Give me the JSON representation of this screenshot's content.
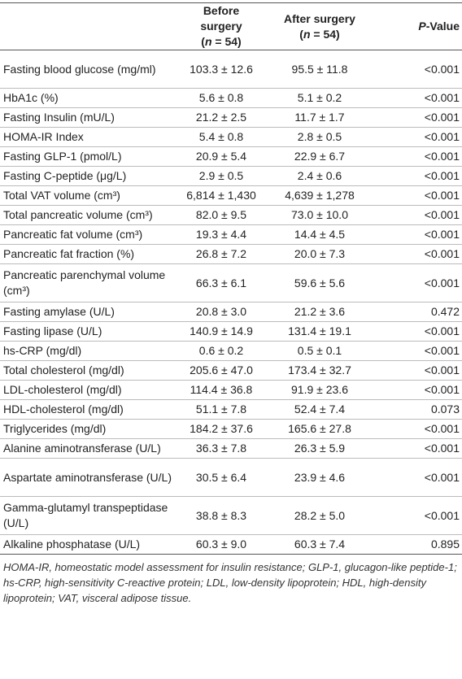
{
  "table": {
    "header": [
      {
        "label": "Before surgery",
        "sub": [
          "(",
          "n",
          " = 54)"
        ]
      },
      {
        "label": "After surgery",
        "sub": [
          "(",
          "n",
          " = 54)"
        ]
      },
      {
        "label": [
          "P",
          "-Value"
        ]
      }
    ],
    "rows": [
      [
        "Fasting blood glucose (mg/ml)",
        "103.3 ± 12.6",
        "95.5 ± 11.8",
        "<0.001"
      ],
      [
        "HbA1c (%)",
        "5.6 ± 0.8",
        "5.1 ± 0.2",
        "<0.001"
      ],
      [
        "Fasting Insulin (mU/L)",
        "21.2 ± 2.5",
        "11.7 ± 1.7",
        "<0.001"
      ],
      [
        "HOMA-IR Index",
        "5.4 ± 0.8",
        "2.8 ± 0.5",
        "<0.001"
      ],
      [
        "Fasting GLP-1 (pmol/L)",
        "20.9 ± 5.4",
        "22.9 ± 6.7",
        "<0.001"
      ],
      [
        "Fasting C-peptide (μg/L)",
        "2.9 ± 0.5",
        "2.4 ± 0.6",
        "<0.001"
      ],
      [
        "Total VAT volume (cm³)",
        "6,814 ± 1,430",
        "4,639 ± 1,278",
        "<0.001"
      ],
      [
        "Total pancreatic volume (cm³)",
        "82.0 ± 9.5",
        "73.0 ± 10.0",
        "<0.001"
      ],
      [
        "Pancreatic fat volume (cm³)",
        "19.3 ± 4.4",
        "14.4 ± 4.5",
        "<0.001"
      ],
      [
        "Pancreatic fat fraction (%)",
        "26.8 ± 7.2",
        "20.0 ± 7.3",
        "<0.001"
      ],
      [
        "Pancreatic parenchymal volume (cm³)",
        "66.3 ± 6.1",
        "59.6 ± 5.6",
        "<0.001"
      ],
      [
        "Fasting amylase (U/L)",
        "20.8 ± 3.0",
        "21.2 ± 3.6",
        "0.472"
      ],
      [
        "Fasting lipase (U/L)",
        "140.9 ± 14.9",
        "131.4 ± 19.1",
        "<0.001"
      ],
      [
        "hs-CRP (mg/dl)",
        "0.6 ± 0.2",
        "0.5 ± 0.1",
        "<0.001"
      ],
      [
        "Total cholesterol (mg/dl)",
        "205.6 ± 47.0",
        "173.4 ± 32.7",
        "<0.001"
      ],
      [
        "LDL-cholesterol (mg/dl)",
        "114.4 ± 36.8",
        "91.9 ± 23.6",
        "<0.001"
      ],
      [
        "HDL-cholesterol (mg/dl)",
        "51.1 ± 7.8",
        "52.4 ± 7.4",
        "0.073"
      ],
      [
        "Triglycerides (mg/dl)",
        "184.2 ± 37.6",
        "165.6 ± 27.8",
        "<0.001"
      ],
      [
        "Alanine aminotransferase (U/L)",
        "36.3 ± 7.8",
        "26.3 ± 5.9",
        "<0.001"
      ],
      [
        "Aspartate aminotransferase (U/L)",
        "30.5 ± 6.4",
        "23.9 ± 4.6",
        "<0.001"
      ],
      [
        "Gamma-glutamyl transpeptidase (U/L)",
        "38.8 ± 8.3",
        "28.2 ± 5.0",
        "<0.001"
      ],
      [
        "Alkaline phosphatase (U/L)",
        "60.3 ± 9.0",
        "60.3 ± 7.4",
        "0.895"
      ]
    ],
    "footnote": "HOMA-IR, homeostatic model assessment for insulin resistance; GLP-1, glucagon-like peptide-1; hs-CRP, high-sensitivity C-reactive protein; LDL, low-density lipoprotein; HDL, high-density lipoprotein; VAT, visceral adipose tissue."
  }
}
